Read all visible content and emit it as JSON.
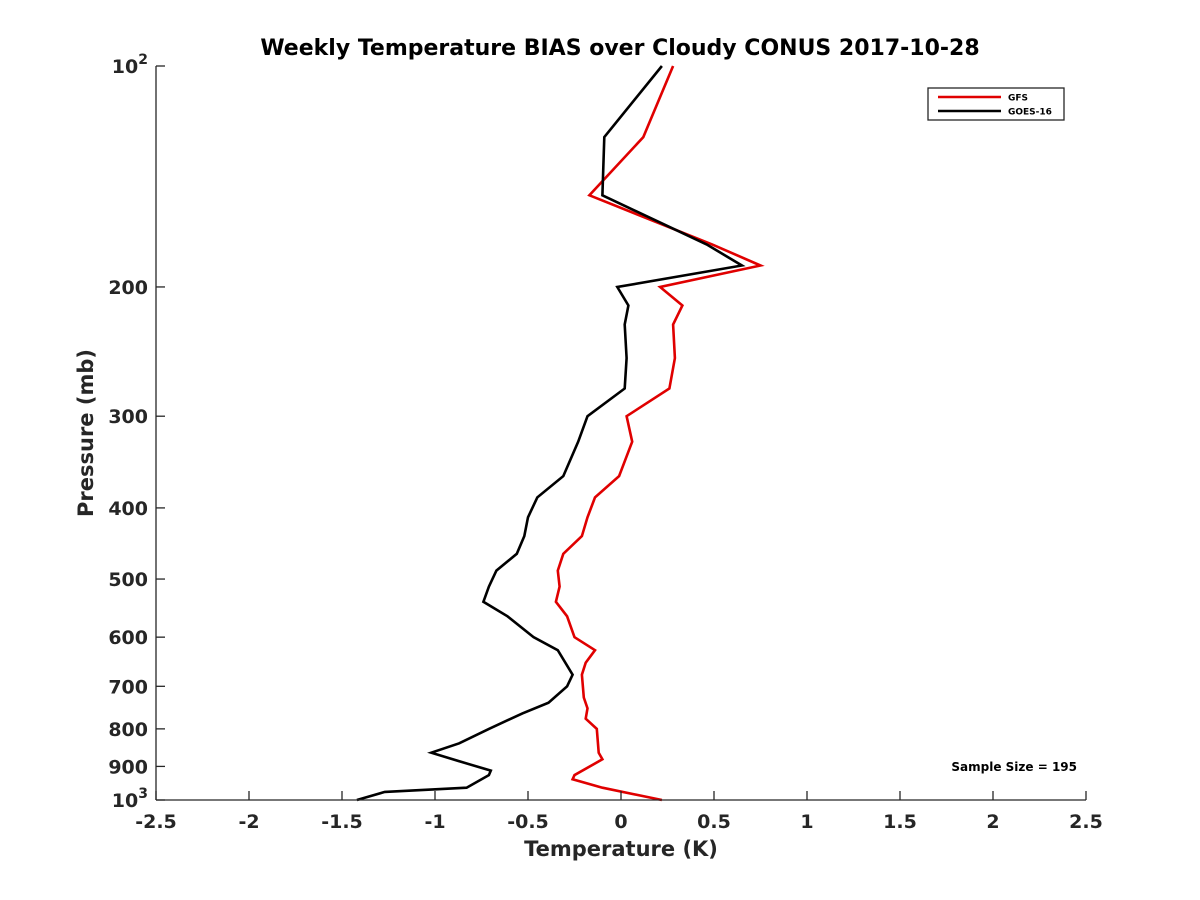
{
  "chart_data": {
    "type": "line",
    "title": "Weekly Temperature BIAS over Cloudy CONUS 2017-10-28",
    "xlabel": "Temperature (K)",
    "ylabel": "Pressure (mb)",
    "xlim": [
      -2.5,
      2.5
    ],
    "ylim": [
      100,
      1000
    ],
    "y_scale": "log",
    "y_reversed": true,
    "grid": false,
    "x_ticks": [
      "-2.5",
      "-2",
      "-1.5",
      "-1",
      "-0.5",
      "0",
      "0.5",
      "1",
      "1.5",
      "2",
      "2.5"
    ],
    "y_ticks": [
      {
        "value": 100,
        "base": "10",
        "exp": "2"
      },
      {
        "value": 200,
        "label": "200"
      },
      {
        "value": 300,
        "label": "300"
      },
      {
        "value": 400,
        "label": "400"
      },
      {
        "value": 500,
        "label": "500"
      },
      {
        "value": 600,
        "label": "600"
      },
      {
        "value": 700,
        "label": "700"
      },
      {
        "value": 800,
        "label": "800"
      },
      {
        "value": 900,
        "label": "900"
      },
      {
        "value": 1000,
        "base": "10",
        "exp": "3"
      }
    ],
    "legend_position": "top-right",
    "annotation": "Sample Size = 195",
    "series": [
      {
        "name": "GFS",
        "color": "#e00000",
        "points": [
          [
            0.28,
            100
          ],
          [
            0.12,
            125
          ],
          [
            -0.17,
            150
          ],
          [
            0.49,
            175
          ],
          [
            0.75,
            187
          ],
          [
            0.21,
            200
          ],
          [
            0.33,
            212
          ],
          [
            0.28,
            225
          ],
          [
            0.29,
            250
          ],
          [
            0.26,
            275
          ],
          [
            0.03,
            300
          ],
          [
            0.06,
            325
          ],
          [
            -0.01,
            362
          ],
          [
            -0.14,
            387
          ],
          [
            -0.18,
            412
          ],
          [
            -0.21,
            437
          ],
          [
            -0.31,
            462
          ],
          [
            -0.34,
            487
          ],
          [
            -0.33,
            512
          ],
          [
            -0.35,
            537
          ],
          [
            -0.29,
            562
          ],
          [
            -0.25,
            600
          ],
          [
            -0.14,
            625
          ],
          [
            -0.19,
            650
          ],
          [
            -0.21,
            675
          ],
          [
            -0.2,
            725
          ],
          [
            -0.18,
            750
          ],
          [
            -0.19,
            775
          ],
          [
            -0.13,
            800
          ],
          [
            -0.12,
            862
          ],
          [
            -0.1,
            880
          ],
          [
            -0.25,
            925
          ],
          [
            -0.26,
            937
          ],
          [
            -0.1,
            962
          ],
          [
            0.22,
            1000
          ]
        ]
      },
      {
        "name": "GOES-16",
        "color": "#000000",
        "points": [
          [
            0.22,
            100
          ],
          [
            -0.09,
            125
          ],
          [
            -0.1,
            150
          ],
          [
            0.46,
            175
          ],
          [
            0.65,
            187
          ],
          [
            -0.02,
            200
          ],
          [
            0.04,
            212
          ],
          [
            0.02,
            225
          ],
          [
            0.03,
            250
          ],
          [
            0.02,
            275
          ],
          [
            -0.18,
            300
          ],
          [
            -0.23,
            325
          ],
          [
            -0.31,
            362
          ],
          [
            -0.45,
            387
          ],
          [
            -0.5,
            412
          ],
          [
            -0.52,
            437
          ],
          [
            -0.56,
            462
          ],
          [
            -0.67,
            487
          ],
          [
            -0.71,
            512
          ],
          [
            -0.74,
            537
          ],
          [
            -0.61,
            562
          ],
          [
            -0.47,
            600
          ],
          [
            -0.34,
            625
          ],
          [
            -0.26,
            675
          ],
          [
            -0.29,
            700
          ],
          [
            -0.39,
            737
          ],
          [
            -0.53,
            762
          ],
          [
            -0.71,
            800
          ],
          [
            -0.87,
            837
          ],
          [
            -1.02,
            862
          ],
          [
            -0.86,
            887
          ],
          [
            -0.7,
            912
          ],
          [
            -0.71,
            925
          ],
          [
            -0.83,
            962
          ],
          [
            -1.27,
            975
          ],
          [
            -1.42,
            1000
          ]
        ]
      }
    ]
  }
}
